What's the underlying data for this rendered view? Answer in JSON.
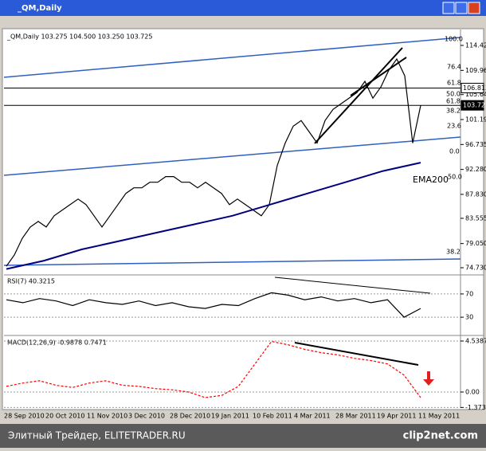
{
  "window": {
    "title": "_QM,Daily"
  },
  "chart_data": [
    {
      "type": "line",
      "title": "_QM,Daily 103.275 104.500 103.250 103.725",
      "ylim": [
        73.45,
        116.84
      ],
      "yticks": [
        {
          "value": 114.42,
          "label": "114.420"
        },
        109.965,
        105.645,
        {
          "value": 101.19,
          "label": "101.190"
        },
        96.735,
        {
          "value": 92.28,
          "label": "92.280"
        },
        {
          "value": 87.83,
          "label": "87.830"
        },
        83.555,
        {
          "value": 79.05,
          "label": "79.050"
        },
        {
          "value": 74.73,
          "label": "74.730"
        }
      ],
      "price_levels": [
        106.813,
        103.725
      ],
      "annotations": [
        "100.0",
        "76.4",
        "61.8",
        "50.0",
        "61.8",
        "38.2",
        "23.6",
        "0.0",
        "EMA200",
        "50.0",
        "38.2"
      ],
      "series": [
        {
          "name": "_QM",
          "color": "#000000",
          "values": [
            75,
            77,
            80,
            82,
            83,
            82,
            84,
            85,
            86,
            87,
            86,
            84,
            82,
            84,
            86,
            88,
            89,
            89,
            90,
            90,
            91,
            91,
            90,
            90,
            89,
            90,
            89,
            88,
            86,
            87,
            86,
            85,
            84,
            86,
            93,
            97,
            100,
            101,
            99,
            97,
            101,
            103,
            104,
            105,
            106,
            108,
            105,
            107,
            110,
            112,
            109,
            97,
            103.7
          ]
        },
        {
          "name": "EMA200",
          "color": "#000080",
          "values": [
            74.5,
            76,
            78,
            79.5,
            81,
            82.5,
            84,
            86,
            88,
            90,
            92,
            93.5
          ]
        }
      ]
    },
    {
      "type": "line",
      "title": "RSI(7) 40.3215",
      "ylim": [
        0,
        100
      ],
      "yticks": [
        30,
        70
      ],
      "series": [
        {
          "name": "RSI",
          "color": "#000000",
          "values": [
            60,
            55,
            62,
            58,
            50,
            60,
            55,
            52,
            58,
            50,
            55,
            48,
            45,
            52,
            50,
            62,
            72,
            68,
            60,
            65,
            58,
            62,
            55,
            60,
            30,
            45
          ]
        }
      ]
    },
    {
      "type": "line",
      "title": "MACD(12,26,9) -0.9878 0.7471",
      "ylim": [
        -1.42,
        4.82
      ],
      "yticks": [
        4.5387,
        {
          "value": 0,
          "label": "0.00"
        },
        -1.3733
      ],
      "series": [
        {
          "name": "MACD",
          "color": "#ff0000",
          "values": [
            0.5,
            0.8,
            1.0,
            0.6,
            0.4,
            0.8,
            1.0,
            0.6,
            0.5,
            0.3,
            0.2,
            0.0,
            -0.5,
            -0.3,
            0.5,
            2.5,
            4.5,
            4.2,
            3.8,
            3.5,
            3.3,
            3.0,
            2.8,
            2.5,
            1.5,
            -0.5
          ]
        }
      ]
    }
  ],
  "x_axis": {
    "categories": [
      "28 Sep 2010",
      "20 Oct 2010",
      "11 Nov 2010",
      "3 Dec 2010",
      "28 Dec 2010",
      "19 Jan 2011",
      "10 Feb 2011",
      "4 Mar 2011",
      "28 Mar 2011",
      "19 Apr 2011",
      "11 May 2011"
    ]
  },
  "footer": {
    "text": "Элитный Трейдер, ELITETRADER.RU",
    "logo": "clip2net.com"
  }
}
